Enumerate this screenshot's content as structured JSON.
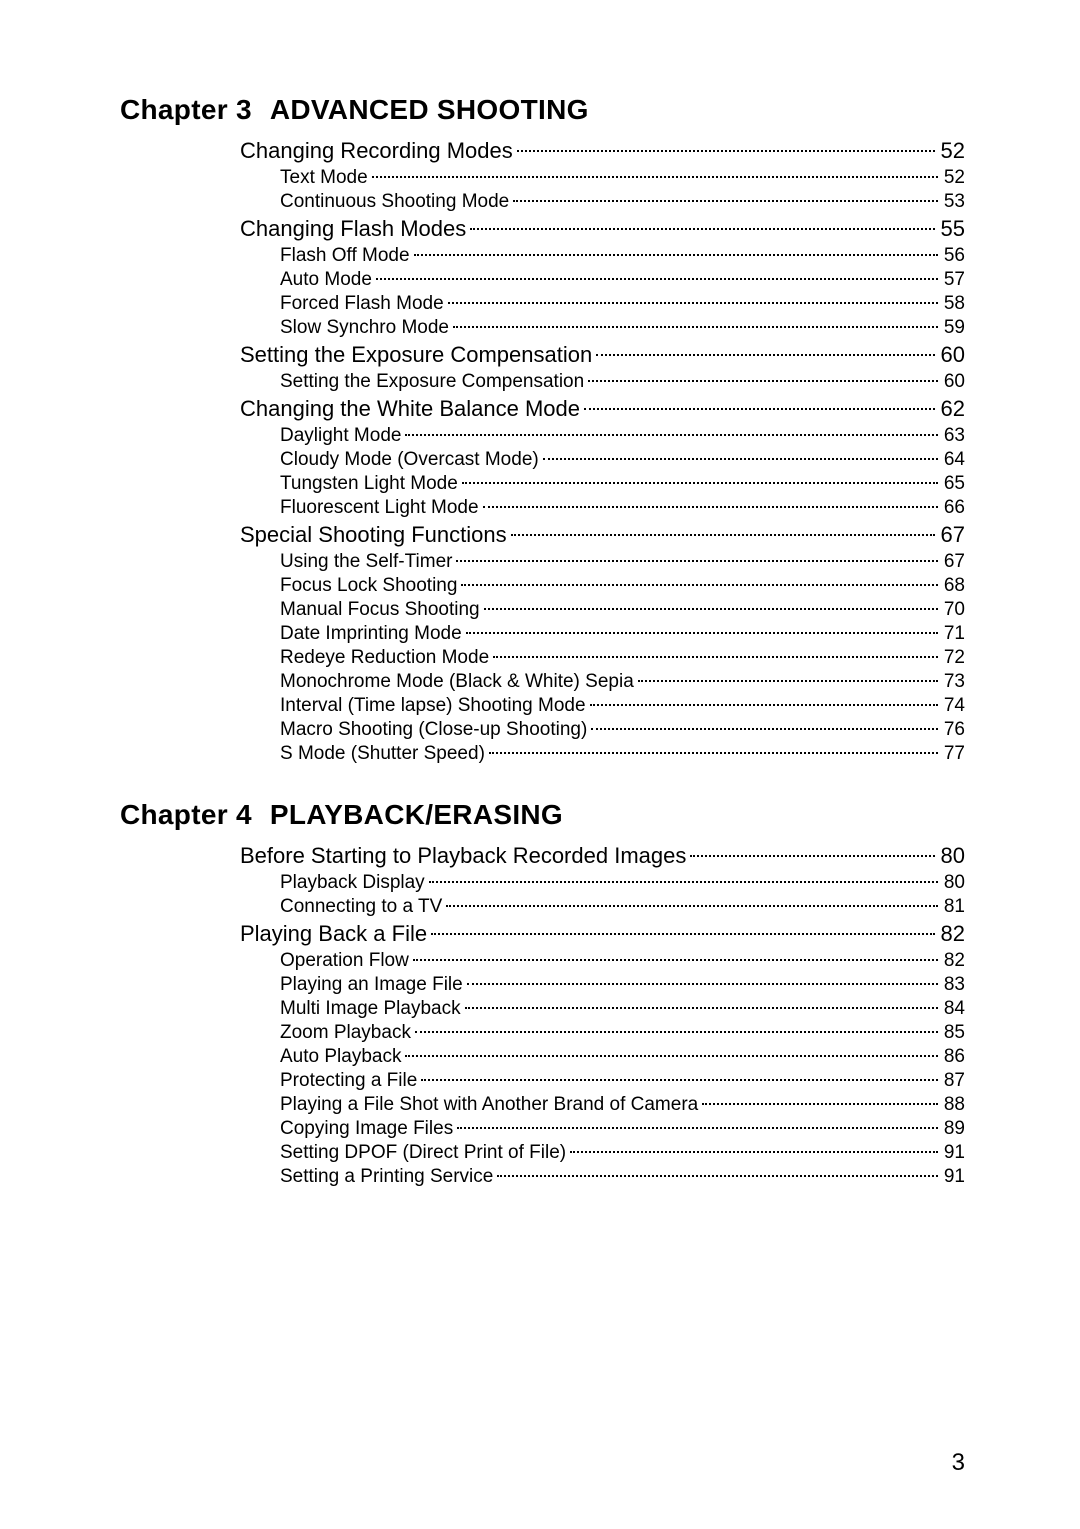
{
  "page_number": "3",
  "chapters": [
    {
      "chapter_label": "Chapter 3",
      "chapter_name": "ADVANCED SHOOTING",
      "entries": [
        {
          "level": 1,
          "text": "Changing Recording Modes",
          "page": "52"
        },
        {
          "level": 2,
          "text": "Text Mode",
          "page": "52"
        },
        {
          "level": 2,
          "text": "Continuous Shooting Mode",
          "page": "53"
        },
        {
          "level": 1,
          "text": "Changing Flash Modes",
          "page": "55"
        },
        {
          "level": 2,
          "text": "Flash Off Mode",
          "page": "56"
        },
        {
          "level": 2,
          "text": "Auto Mode",
          "page": "57"
        },
        {
          "level": 2,
          "text": "Forced Flash Mode",
          "page": "58"
        },
        {
          "level": 2,
          "text": "Slow Synchro Mode",
          "page": "59"
        },
        {
          "level": 1,
          "text": "Setting the Exposure Compensation",
          "page": "60"
        },
        {
          "level": 2,
          "text": "Setting the Exposure Compensation",
          "page": "60"
        },
        {
          "level": 1,
          "text": "Changing the White Balance Mode",
          "page": "62"
        },
        {
          "level": 2,
          "text": "Daylight Mode",
          "page": "63"
        },
        {
          "level": 2,
          "text": "Cloudy Mode (Overcast Mode)",
          "page": "64"
        },
        {
          "level": 2,
          "text": "Tungsten Light Mode",
          "page": "65"
        },
        {
          "level": 2,
          "text": "Fluorescent Light Mode",
          "page": "66"
        },
        {
          "level": 1,
          "text": "Special Shooting Functions",
          "page": "67"
        },
        {
          "level": 2,
          "text": "Using the Self-Timer",
          "page": "67"
        },
        {
          "level": 2,
          "text": "Focus Lock Shooting",
          "page": "68"
        },
        {
          "level": 2,
          "text": "Manual Focus Shooting",
          "page": "70"
        },
        {
          "level": 2,
          "text": "Date Imprinting Mode",
          "page": "71"
        },
        {
          "level": 2,
          "text": "Redeye Reduction Mode",
          "page": "72"
        },
        {
          "level": 2,
          "text": "Monochrome Mode (Black & White) Sepia",
          "page": "73"
        },
        {
          "level": 2,
          "text": "Interval (Time lapse) Shooting Mode",
          "page": "74"
        },
        {
          "level": 2,
          "text": "Macro Shooting (Close-up Shooting)",
          "page": "76"
        },
        {
          "level": 2,
          "text": "S Mode (Shutter Speed)",
          "page": "77"
        }
      ]
    },
    {
      "chapter_label": "Chapter 4",
      "chapter_name": "PLAYBACK/ERASING",
      "entries": [
        {
          "level": 1,
          "text": "Before Starting to Playback Recorded Images",
          "page": "80"
        },
        {
          "level": 2,
          "text": "Playback Display",
          "page": "80"
        },
        {
          "level": 2,
          "text": "Connecting to a TV",
          "page": "81"
        },
        {
          "level": 1,
          "text": "Playing Back a File",
          "page": "82"
        },
        {
          "level": 2,
          "text": "Operation Flow",
          "page": "82"
        },
        {
          "level": 2,
          "text": "Playing an Image File",
          "page": "83"
        },
        {
          "level": 2,
          "text": "Multi Image Playback",
          "page": "84"
        },
        {
          "level": 2,
          "text": "Zoom Playback",
          "page": "85"
        },
        {
          "level": 2,
          "text": "Auto Playback",
          "page": "86"
        },
        {
          "level": 2,
          "text": "Protecting a File",
          "page": "87"
        },
        {
          "level": 2,
          "text": "Playing a File Shot with Another Brand of Camera",
          "page": "88"
        },
        {
          "level": 2,
          "text": "Copying Image Files",
          "page": "89"
        },
        {
          "level": 2,
          "text": "Setting DPOF (Direct Print of File)",
          "page": "91"
        },
        {
          "level": 2,
          "text": "Setting a Printing Service",
          "page": "91"
        }
      ]
    }
  ]
}
